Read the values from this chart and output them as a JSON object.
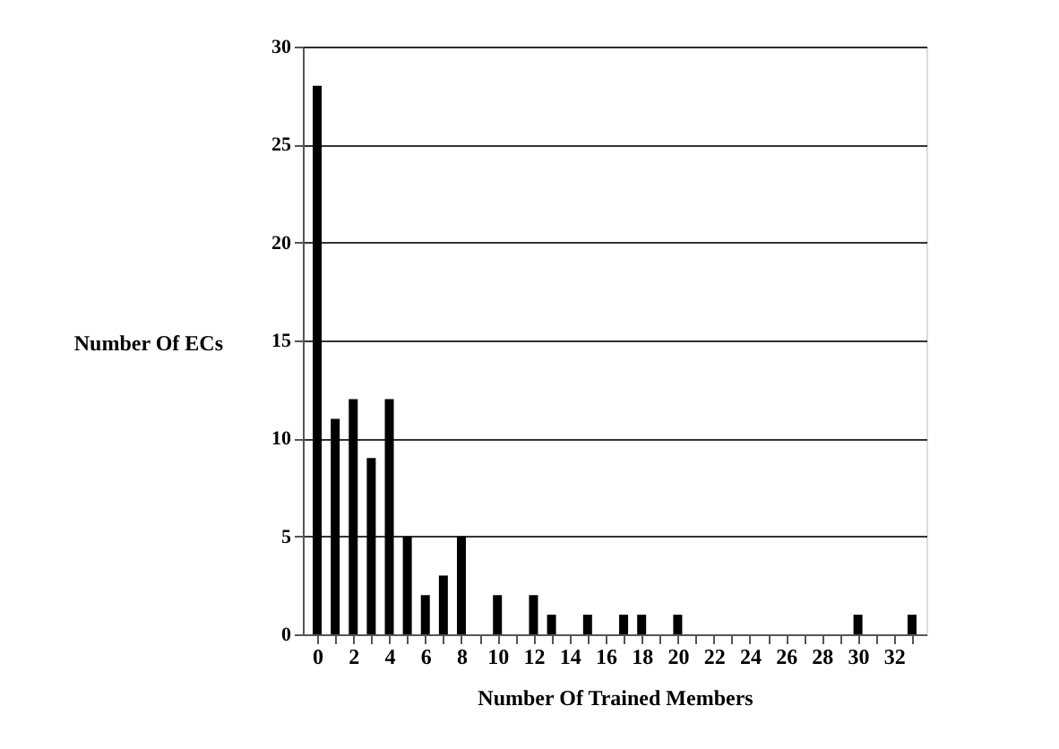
{
  "chart_data": {
    "type": "bar",
    "xlabel": "Number Of Trained Members",
    "ylabel": "Number Of ECs",
    "x": [
      0,
      1,
      2,
      3,
      4,
      5,
      6,
      7,
      8,
      9,
      10,
      11,
      12,
      13,
      14,
      15,
      16,
      17,
      18,
      19,
      20,
      21,
      22,
      23,
      24,
      25,
      26,
      27,
      28,
      29,
      30,
      31,
      32,
      33
    ],
    "values": [
      28,
      11,
      12,
      9,
      12,
      5,
      2,
      3,
      5,
      0,
      2,
      0,
      2,
      1,
      0,
      1,
      0,
      1,
      1,
      0,
      1,
      0,
      0,
      0,
      0,
      0,
      0,
      0,
      0,
      0,
      1,
      0,
      0,
      1
    ],
    "color": "#000000",
    "xlim": [
      -0.3,
      33.3
    ],
    "xticks": [
      0,
      {
        "value": 1,
        "label": null
      },
      2,
      {
        "value": 3,
        "label": null
      },
      4,
      {
        "value": 5,
        "label": null
      },
      6,
      {
        "value": 7,
        "label": null
      },
      8,
      {
        "value": 9,
        "label": null
      },
      10,
      {
        "value": 11,
        "label": null
      },
      12,
      {
        "value": 13,
        "label": null
      },
      14,
      {
        "value": 15,
        "label": null
      },
      16,
      {
        "value": 17,
        "label": null
      },
      18,
      {
        "value": 19,
        "label": null
      },
      20,
      {
        "value": 21,
        "label": null
      },
      22,
      {
        "value": 23,
        "label": null
      },
      24,
      {
        "value": 25,
        "label": null
      },
      26,
      {
        "value": 27,
        "label": null
      },
      28,
      {
        "value": 29,
        "label": null
      },
      30,
      {
        "value": 31,
        "label": null
      },
      32,
      {
        "value": 33,
        "label": null
      }
    ],
    "ylim": [
      0,
      30
    ],
    "yticks": [
      0,
      5,
      10,
      15,
      20,
      25,
      30
    ],
    "grid": "y"
  }
}
